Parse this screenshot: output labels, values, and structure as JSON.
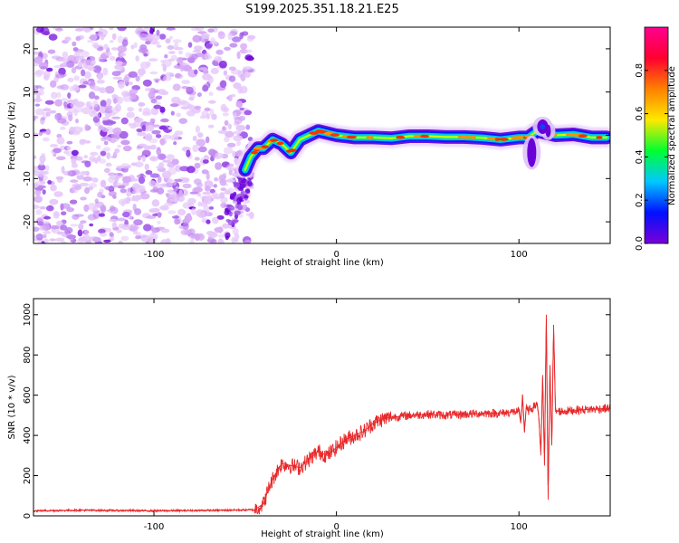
{
  "title": "S199.2025.351.18.21.E25",
  "chart_data": [
    {
      "type": "heatmap",
      "name": "spectrogram",
      "xlabel": "Height of straight line (km)",
      "ylabel": "Frequency (Hz)",
      "xlim": [
        -166,
        150
      ],
      "ylim": [
        -25,
        25
      ],
      "xticks": [
        -100,
        0,
        100
      ],
      "yticks": [
        -20,
        -10,
        0,
        10,
        20
      ],
      "ridge": {
        "description": "dominant frequency ridge",
        "x": [
          -50,
          -47,
          -43,
          -40,
          -35,
          -30,
          -25,
          -20,
          -15,
          -10,
          -5,
          0,
          10,
          20,
          30,
          40,
          50,
          60,
          70,
          80,
          90,
          100,
          105,
          110,
          115,
          120,
          130,
          140,
          148
        ],
        "y": [
          -8,
          -5,
          -3,
          -3,
          -1,
          -2,
          -4,
          -1,
          0,
          1,
          0.5,
          0,
          -0.5,
          -0.5,
          -0.7,
          -0.2,
          -0.2,
          -0.4,
          -0.4,
          -0.6,
          -1,
          -0.5,
          -0.5,
          1,
          0.5,
          0,
          0.2,
          -0.5,
          -0.5
        ]
      },
      "noise_region": {
        "x": [
          -166,
          -46
        ],
        "y": [
          -25,
          25
        ]
      },
      "colorbar": {
        "label": "Normalized spectral amplitude",
        "range": [
          0.0,
          1.0
        ],
        "ticks": [
          "0.0",
          "0.2",
          "0.4",
          "0.6",
          "0.8"
        ],
        "stops": [
          "#7a00d8",
          "#0010ff",
          "#00c8ff",
          "#00ff30",
          "#ffe800",
          "#ff8000",
          "#ff0030",
          "#ff0090"
        ]
      }
    },
    {
      "type": "line",
      "name": "snr",
      "xlabel": "Height of straight line (km)",
      "ylabel": "SNR (10 * v/v)",
      "xlim": [
        -166,
        150
      ],
      "ylim": [
        0,
        1080
      ],
      "xticks": [
        -100,
        0,
        100
      ],
      "yticks": [
        0,
        200,
        400,
        600,
        800,
        1000
      ],
      "series": [
        {
          "name": "SNR",
          "color": "#e8282a",
          "x": [
            -166,
            -140,
            -100,
            -60,
            -45,
            -40,
            -37,
            -34,
            -30,
            -25,
            -20,
            -15,
            -10,
            -5,
            0,
            5,
            10,
            15,
            20,
            25,
            30,
            40,
            50,
            60,
            70,
            80,
            90,
            100,
            101,
            102,
            103,
            104,
            105,
            108,
            110,
            111,
            112,
            113,
            114,
            115,
            116,
            117,
            118,
            119,
            120,
            125,
            130,
            140,
            150
          ],
          "y": [
            25,
            28,
            25,
            28,
            30,
            60,
            140,
            200,
            260,
            250,
            240,
            280,
            320,
            300,
            340,
            380,
            400,
            420,
            460,
            480,
            490,
            500,
            505,
            500,
            505,
            510,
            510,
            520,
            460,
            600,
            420,
            540,
            520,
            540,
            560,
            480,
            300,
            700,
            250,
            1000,
            80,
            750,
            350,
            950,
            520,
            520,
            525,
            530,
            535
          ]
        }
      ]
    }
  ]
}
